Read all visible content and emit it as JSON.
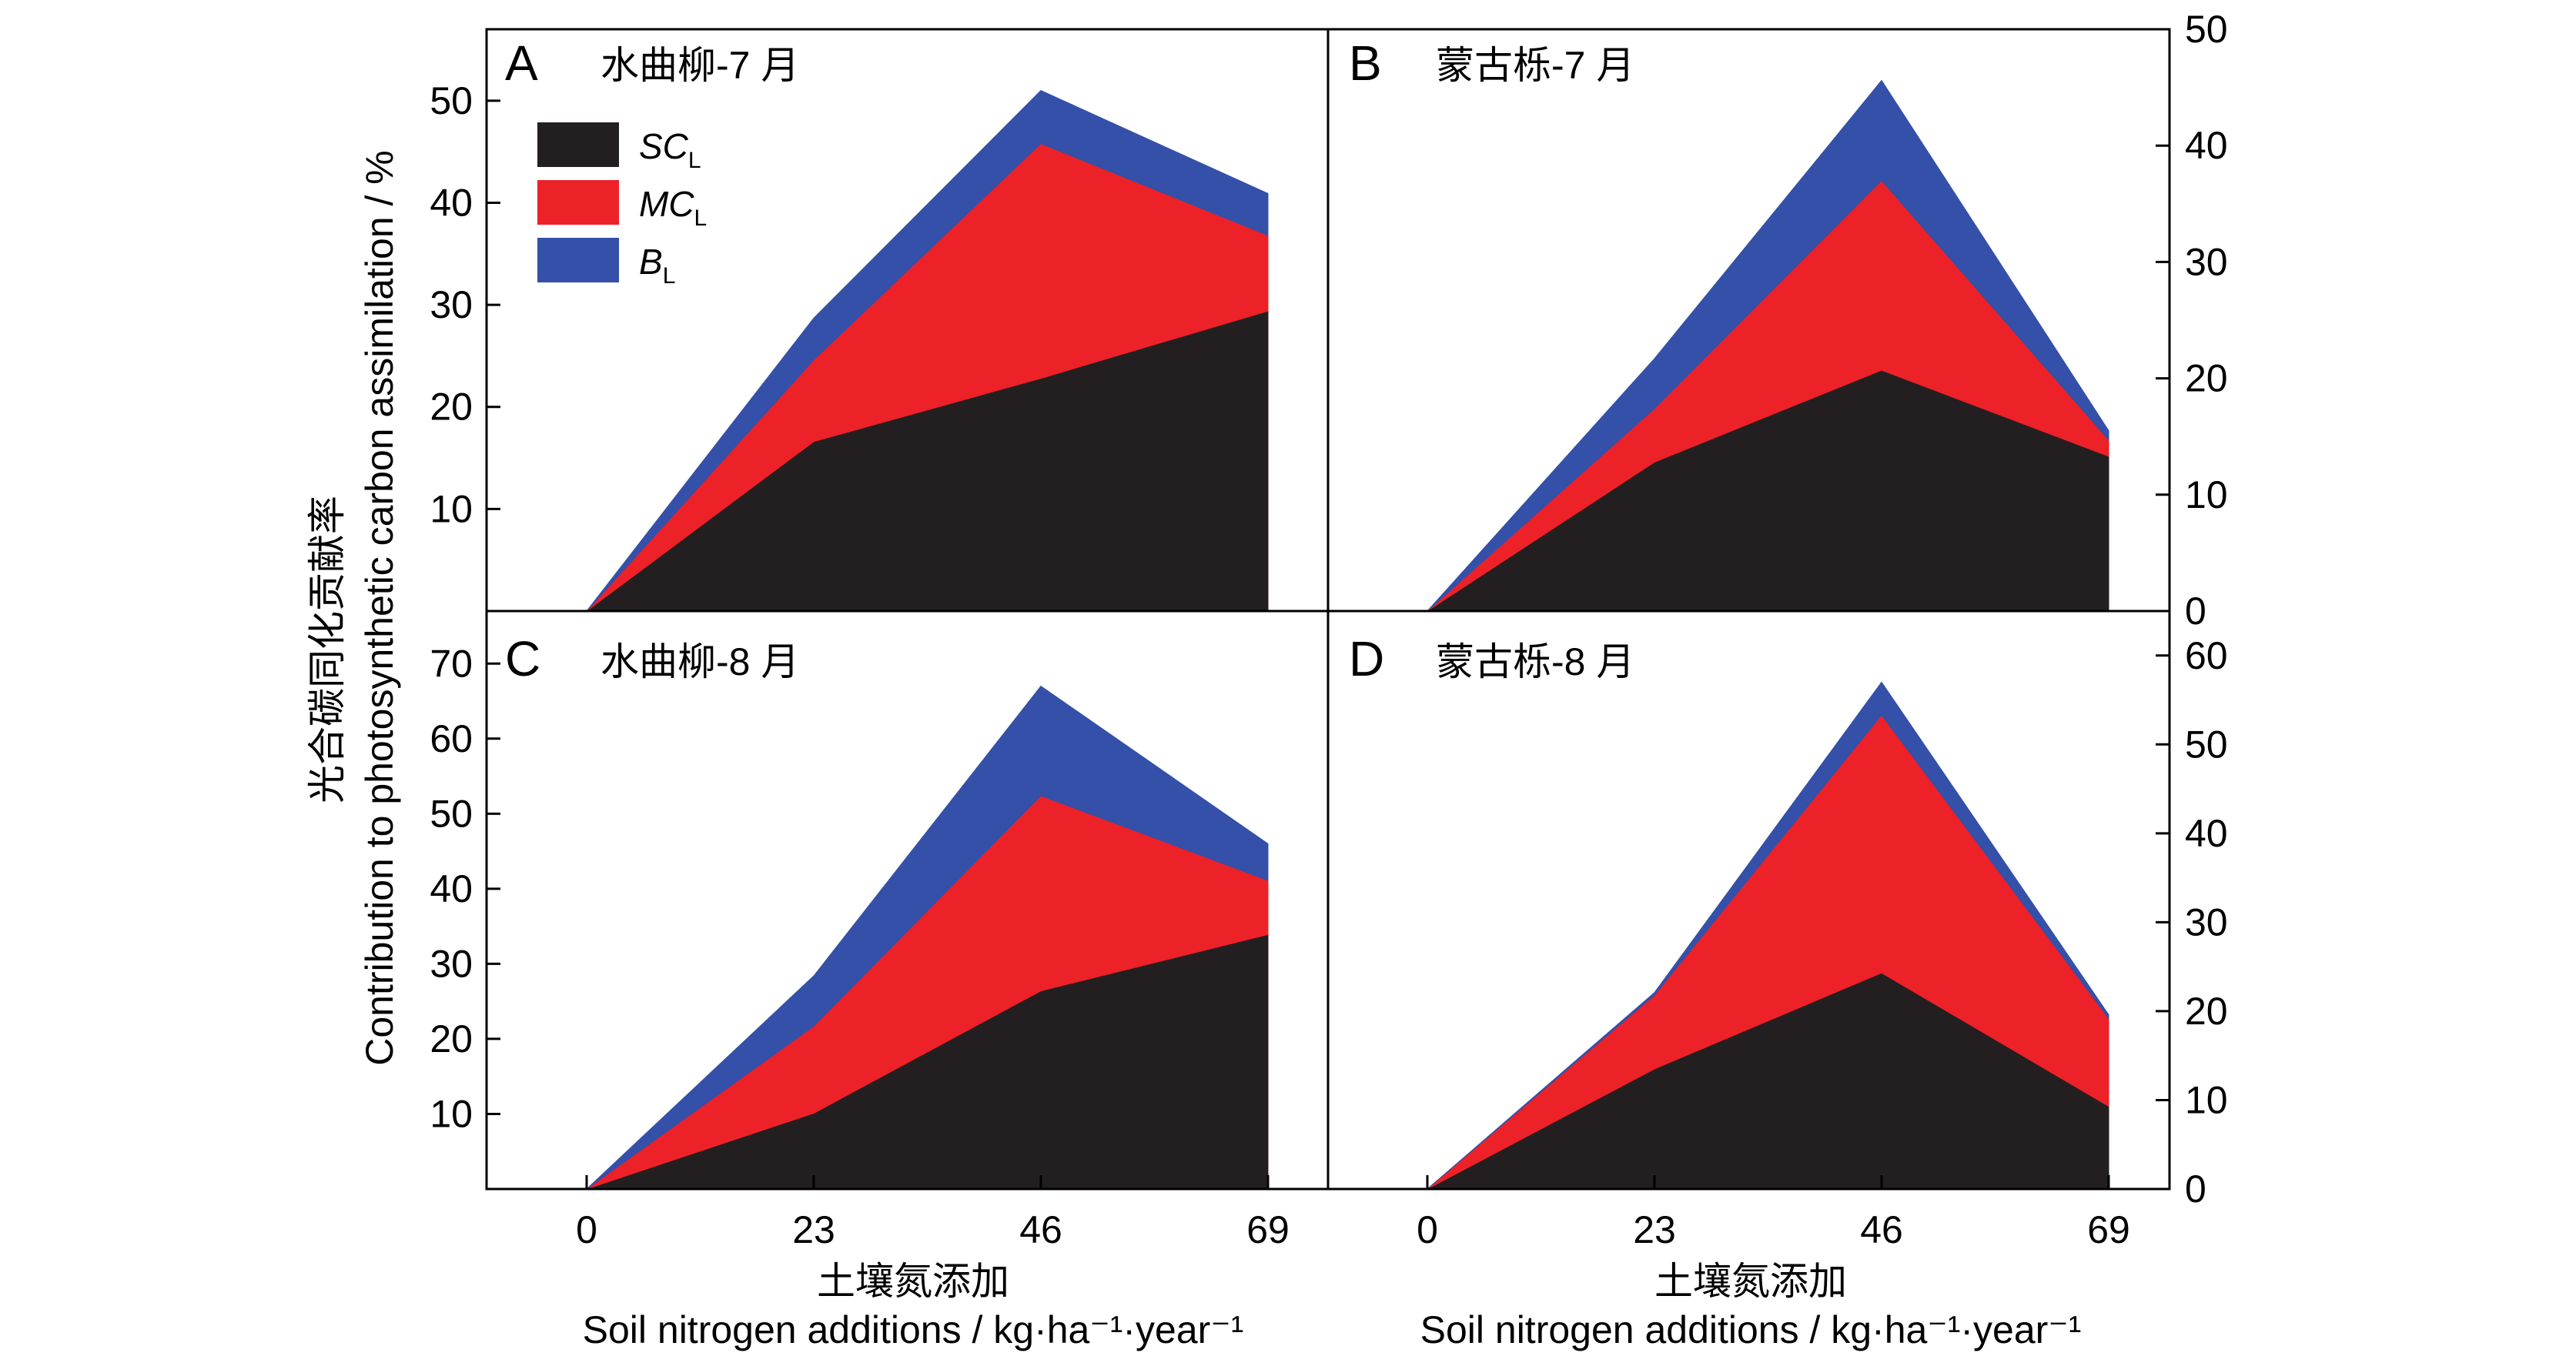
{
  "y_label_zh": "光合碳同化贡献率",
  "y_label_en": "Contribution to photosynthetic carbon assimilation / %",
  "x_label_zh": "土壤氮添加",
  "x_label_en": "Soil nitrogen additions / kg·ha⁻¹·year⁻¹",
  "legend": [
    {
      "main": "SC",
      "sub": "L",
      "color": "#231f20"
    },
    {
      "main": "MC",
      "sub": "L",
      "color": "#ed2128"
    },
    {
      "main": "B",
      "sub": "L",
      "color": "#3450a8"
    }
  ],
  "chart_data": [
    {
      "type": "area",
      "letter": "A",
      "title": "水曲柳-7 月",
      "x": [
        0,
        23,
        46,
        69
      ],
      "x_ticks": [
        "0",
        "23",
        "46",
        "69"
      ],
      "ylim": [
        0,
        57
      ],
      "y_ticks": [
        10,
        20,
        30,
        40,
        50
      ],
      "y_axis_side": "left",
      "stacked": true,
      "series": [
        {
          "name": "SCL",
          "values": [
            0,
            16.6,
            22.8,
            29.4
          ]
        },
        {
          "name": "MCL",
          "values": [
            0,
            8.0,
            23.0,
            7.4
          ]
        },
        {
          "name": "BL",
          "values": [
            0,
            4.1,
            5.2,
            4.1
          ]
        }
      ]
    },
    {
      "type": "area",
      "letter": "B",
      "title": "蒙古栎-7 月",
      "x": [
        0,
        23,
        46,
        69
      ],
      "x_ticks": [
        "0",
        "23",
        "46",
        "69"
      ],
      "ylim": [
        0,
        50
      ],
      "y_ticks": [
        0,
        10,
        20,
        30,
        40,
        50
      ],
      "y_axis_side": "right",
      "stacked": true,
      "series": [
        {
          "name": "SCL",
          "values": [
            0,
            12.8,
            20.7,
            13.3
          ]
        },
        {
          "name": "MCL",
          "values": [
            0,
            4.6,
            16.3,
            1.4
          ]
        },
        {
          "name": "BL",
          "values": [
            0,
            4.3,
            8.6,
            0.8
          ]
        }
      ]
    },
    {
      "type": "area",
      "letter": "C",
      "title": "水曲柳-8 月",
      "x": [
        0,
        23,
        46,
        69
      ],
      "x_ticks": [
        "0",
        "23",
        "46",
        "69"
      ],
      "ylim": [
        0,
        77
      ],
      "y_ticks": [
        10,
        20,
        30,
        40,
        50,
        60,
        70
      ],
      "y_axis_side": "left",
      "stacked": true,
      "series": [
        {
          "name": "SCL",
          "values": [
            0,
            10.1,
            26.4,
            33.9
          ]
        },
        {
          "name": "MCL",
          "values": [
            0,
            11.6,
            26.0,
            7.2
          ]
        },
        {
          "name": "BL",
          "values": [
            0,
            6.7,
            14.6,
            4.9
          ]
        }
      ]
    },
    {
      "type": "area",
      "letter": "D",
      "title": "蒙古栎-8 月",
      "x": [
        0,
        23,
        46,
        69
      ],
      "x_ticks": [
        "0",
        "23",
        "46",
        "69"
      ],
      "ylim": [
        0,
        65
      ],
      "y_ticks": [
        0,
        10,
        20,
        30,
        40,
        50,
        60
      ],
      "y_axis_side": "right",
      "stacked": true,
      "series": [
        {
          "name": "SCL",
          "values": [
            0,
            13.5,
            24.3,
            9.3
          ]
        },
        {
          "name": "MCL",
          "values": [
            0,
            8.3,
            29.0,
            9.9
          ]
        },
        {
          "name": "BL",
          "values": [
            0,
            0.3,
            3.7,
            0.4
          ]
        }
      ]
    }
  ]
}
